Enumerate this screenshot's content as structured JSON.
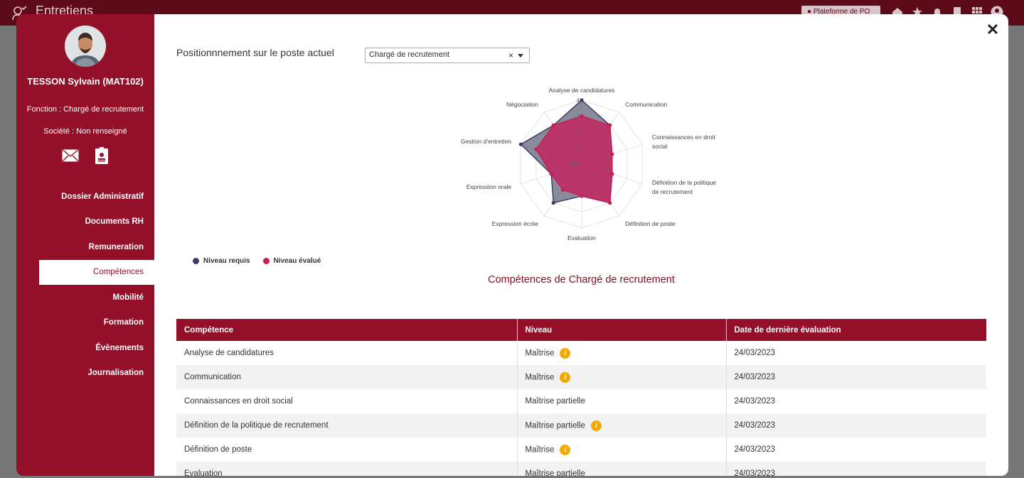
{
  "app": {
    "title": "Entretiens",
    "platform_label": "Plateforme de PO"
  },
  "employee": {
    "name": "TESSON Sylvain (MAT102)",
    "fonction": "Fonction : Chargé de recrutement",
    "societe": "Société : Non renseigné"
  },
  "nav": [
    {
      "label": "Dossier Administratif"
    },
    {
      "label": "Documents RH"
    },
    {
      "label": "Remuneration"
    },
    {
      "label": "Compétences",
      "active": true
    },
    {
      "label": "Mobilité"
    },
    {
      "label": "Formation"
    },
    {
      "label": "Évènements"
    },
    {
      "label": "Journalisation"
    }
  ],
  "position": {
    "label": "Positionnnement sur le poste actuel",
    "selected": "Chargé de recrutement"
  },
  "chart_data": {
    "type": "radar",
    "categories": [
      "Analyse de candidatures",
      "Communication",
      "Connaissances en droit social",
      "Définition de la politique de recrutement",
      "Définition de poste",
      "Evaluation",
      "Expression écrite",
      "Expression orale",
      "Gestion d'entretien",
      "Négociation"
    ],
    "scale_ticks": [
      "N/A",
      "1",
      "2",
      "3",
      "4"
    ],
    "series": [
      {
        "name": "Niveau requis",
        "color": "#3b3f5c",
        "values": [
          4,
          3,
          2,
          2,
          3,
          2,
          3,
          2,
          4,
          3
        ]
      },
      {
        "name": "Niveau évalué",
        "color": "#c81e5a",
        "values": [
          3,
          3,
          2,
          2,
          3,
          2,
          2,
          2,
          3,
          3
        ]
      }
    ],
    "ylim": [
      0,
      4
    ]
  },
  "section_title": "Compétences de Chargé de recrutement",
  "table": {
    "headers": [
      "Compétence",
      "Niveau",
      "Date de dernière évaluation"
    ],
    "rows": [
      {
        "competence": "Analyse de candidatures",
        "niveau": "Maîtrise",
        "info": true,
        "date": "24/03/2023"
      },
      {
        "competence": "Communication",
        "niveau": "Maîtrise",
        "info": true,
        "date": "24/03/2023"
      },
      {
        "competence": "Connaissances en droit social",
        "niveau": "Maîtrise partielle",
        "info": false,
        "date": "24/03/2023"
      },
      {
        "competence": "Définition de la politique de recrutement",
        "niveau": "Maîtrise partielle",
        "info": true,
        "date": "24/03/2023"
      },
      {
        "competence": "Définition de poste",
        "niveau": "Maîtrise",
        "info": true,
        "date": "24/03/2023"
      },
      {
        "competence": "Evaluation",
        "niveau": "Maîtrise partielle",
        "info": false,
        "date": "24/03/2023"
      }
    ]
  }
}
